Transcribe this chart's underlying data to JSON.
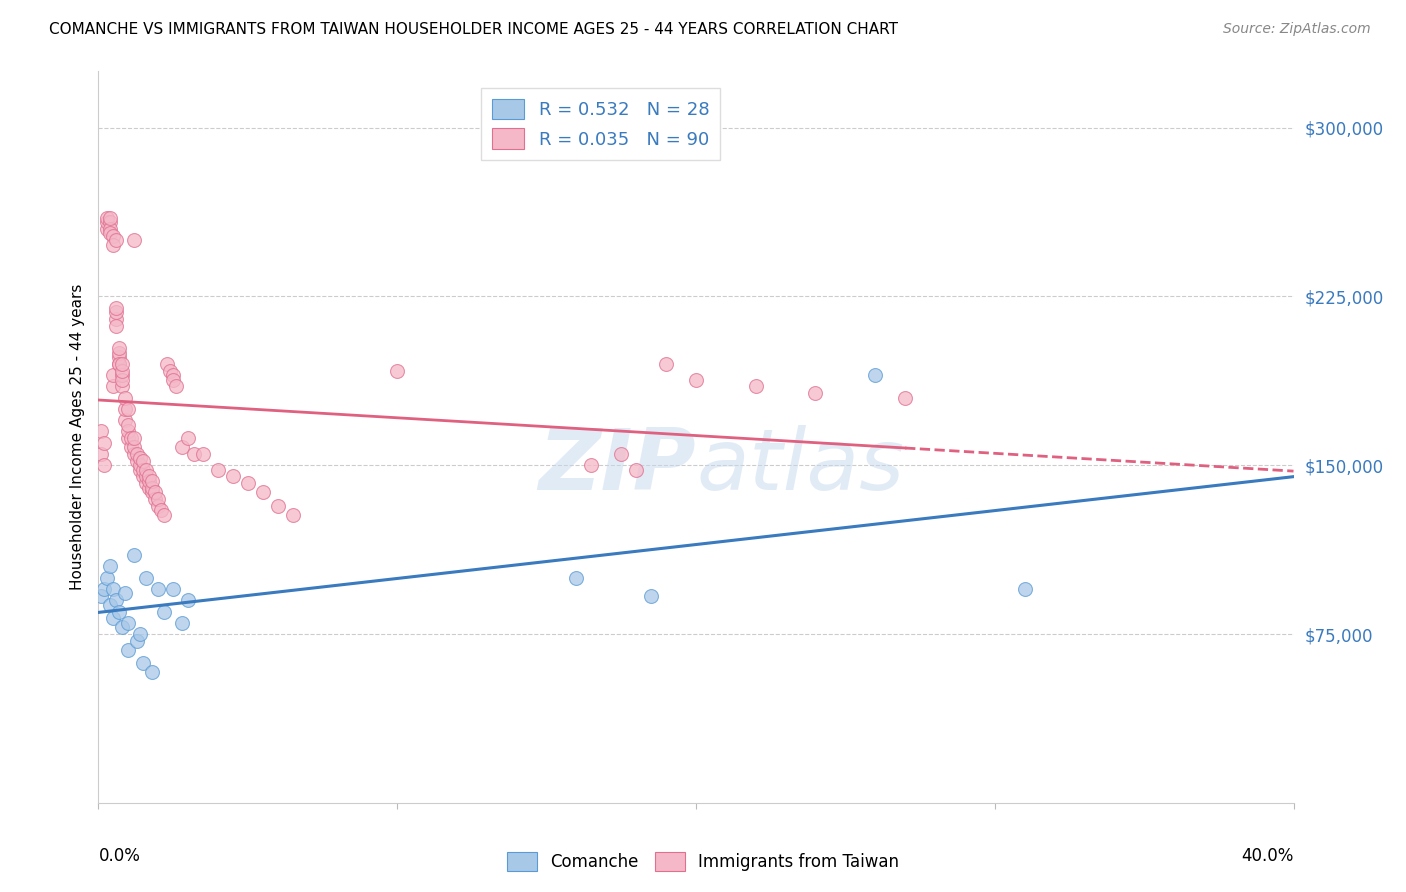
{
  "title": "COMANCHE VS IMMIGRANTS FROM TAIWAN HOUSEHOLDER INCOME AGES 25 - 44 YEARS CORRELATION CHART",
  "source": "Source: ZipAtlas.com",
  "ylabel": "Householder Income Ages 25 - 44 years",
  "R1": "0.532",
  "N1": "28",
  "R2": "0.035",
  "N2": "90",
  "xlim": [
    0.0,
    0.4
  ],
  "ylim": [
    0,
    325000
  ],
  "yticks": [
    75000,
    150000,
    225000,
    300000
  ],
  "ytick_labels": [
    "$75,000",
    "$150,000",
    "$225,000",
    "$300,000"
  ],
  "color_blue_fill": "#a8c8e8",
  "color_blue_edge": "#5b9bd5",
  "color_pink_fill": "#f4b8c8",
  "color_pink_edge": "#e07090",
  "color_blue_line": "#3a7abf",
  "color_pink_line": "#e06080",
  "watermark_color": "#c5d8ee",
  "legend_label1": "Comanche",
  "legend_label2": "Immigrants from Taiwan",
  "blue_scatter_x": [
    0.001,
    0.002,
    0.003,
    0.004,
    0.004,
    0.005,
    0.005,
    0.006,
    0.007,
    0.008,
    0.009,
    0.01,
    0.01,
    0.012,
    0.013,
    0.014,
    0.015,
    0.016,
    0.018,
    0.02,
    0.022,
    0.025,
    0.028,
    0.03,
    0.16,
    0.185,
    0.26,
    0.31
  ],
  "blue_scatter_y": [
    92000,
    95000,
    100000,
    88000,
    105000,
    82000,
    95000,
    90000,
    85000,
    78000,
    93000,
    80000,
    68000,
    110000,
    72000,
    75000,
    62000,
    100000,
    58000,
    95000,
    85000,
    95000,
    80000,
    90000,
    100000,
    92000,
    190000,
    95000
  ],
  "pink_scatter_x": [
    0.001,
    0.001,
    0.002,
    0.002,
    0.003,
    0.003,
    0.003,
    0.004,
    0.004,
    0.004,
    0.004,
    0.005,
    0.005,
    0.005,
    0.005,
    0.006,
    0.006,
    0.006,
    0.006,
    0.006,
    0.007,
    0.007,
    0.007,
    0.007,
    0.007,
    0.008,
    0.008,
    0.008,
    0.008,
    0.008,
    0.009,
    0.009,
    0.009,
    0.01,
    0.01,
    0.01,
    0.01,
    0.011,
    0.011,
    0.012,
    0.012,
    0.012,
    0.012,
    0.013,
    0.013,
    0.014,
    0.014,
    0.014,
    0.015,
    0.015,
    0.015,
    0.016,
    0.016,
    0.016,
    0.017,
    0.017,
    0.017,
    0.018,
    0.018,
    0.018,
    0.019,
    0.019,
    0.02,
    0.02,
    0.021,
    0.022,
    0.023,
    0.024,
    0.025,
    0.025,
    0.026,
    0.028,
    0.03,
    0.032,
    0.035,
    0.04,
    0.045,
    0.05,
    0.055,
    0.06,
    0.065,
    0.1,
    0.165,
    0.175,
    0.18,
    0.19,
    0.2,
    0.22,
    0.24,
    0.27
  ],
  "pink_scatter_y": [
    155000,
    165000,
    150000,
    160000,
    255000,
    258000,
    260000,
    258000,
    255000,
    260000,
    253000,
    185000,
    190000,
    252000,
    248000,
    215000,
    218000,
    212000,
    220000,
    250000,
    195000,
    198000,
    200000,
    202000,
    195000,
    185000,
    190000,
    188000,
    192000,
    195000,
    170000,
    175000,
    180000,
    162000,
    165000,
    168000,
    175000,
    158000,
    162000,
    155000,
    158000,
    162000,
    250000,
    152000,
    155000,
    148000,
    150000,
    153000,
    145000,
    148000,
    152000,
    142000,
    145000,
    148000,
    140000,
    143000,
    145000,
    138000,
    140000,
    143000,
    135000,
    138000,
    132000,
    135000,
    130000,
    128000,
    195000,
    192000,
    190000,
    188000,
    185000,
    158000,
    162000,
    155000,
    155000,
    148000,
    145000,
    142000,
    138000,
    132000,
    128000,
    192000,
    150000,
    155000,
    148000,
    195000,
    188000,
    185000,
    182000,
    180000
  ]
}
